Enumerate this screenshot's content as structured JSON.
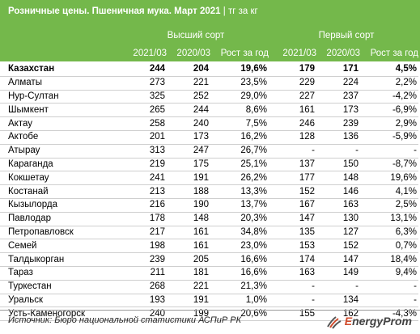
{
  "title": {
    "main": "Розничные цены. Пшеничная мука. Март 2021",
    "separator": "|",
    "unit": "тг за кг"
  },
  "groups": {
    "premium": "Высший сорт",
    "first": "Первый сорт"
  },
  "columns": {
    "c1": "2021/03",
    "c2": "2020/03",
    "c3": "Рост за год",
    "c4": "2021/03",
    "c5": "2020/03",
    "c6": "Рост за год"
  },
  "rows": [
    {
      "name": "Казахстан",
      "v": [
        "244",
        "204",
        "19,6%",
        "179",
        "171",
        "4,5%"
      ]
    },
    {
      "name": "Алматы",
      "v": [
        "273",
        "221",
        "23,5%",
        "229",
        "224",
        "2,2%"
      ]
    },
    {
      "name": "Нур-Султан",
      "v": [
        "325",
        "252",
        "29,0%",
        "227",
        "237",
        "-4,2%"
      ]
    },
    {
      "name": "Шымкент",
      "v": [
        "265",
        "244",
        "8,6%",
        "161",
        "173",
        "-6,9%"
      ]
    },
    {
      "name": "Актау",
      "v": [
        "258",
        "240",
        "7,5%",
        "246",
        "239",
        "2,9%"
      ]
    },
    {
      "name": "Актобе",
      "v": [
        "201",
        "173",
        "16,2%",
        "128",
        "136",
        "-5,9%"
      ]
    },
    {
      "name": "Атырау",
      "v": [
        "313",
        "247",
        "26,7%",
        "-",
        "-",
        "-"
      ]
    },
    {
      "name": "Караганда",
      "v": [
        "219",
        "175",
        "25,1%",
        "137",
        "150",
        "-8,7%"
      ]
    },
    {
      "name": "Кокшетау",
      "v": [
        "241",
        "191",
        "26,2%",
        "177",
        "148",
        "19,6%"
      ]
    },
    {
      "name": "Костанай",
      "v": [
        "213",
        "188",
        "13,3%",
        "152",
        "146",
        "4,1%"
      ]
    },
    {
      "name": "Кызылорда",
      "v": [
        "216",
        "190",
        "13,7%",
        "167",
        "163",
        "2,5%"
      ]
    },
    {
      "name": "Павлодар",
      "v": [
        "178",
        "148",
        "20,3%",
        "147",
        "130",
        "13,1%"
      ]
    },
    {
      "name": "Петропавловск",
      "v": [
        "217",
        "161",
        "34,8%",
        "135",
        "127",
        "6,3%"
      ]
    },
    {
      "name": "Семей",
      "v": [
        "198",
        "161",
        "23,0%",
        "153",
        "152",
        "0,7%"
      ]
    },
    {
      "name": "Талдыкорган",
      "v": [
        "239",
        "205",
        "16,6%",
        "174",
        "147",
        "18,4%"
      ]
    },
    {
      "name": "Тараз",
      "v": [
        "211",
        "181",
        "16,6%",
        "163",
        "149",
        "9,4%"
      ]
    },
    {
      "name": "Туркестан",
      "v": [
        "268",
        "221",
        "21,3%",
        "-",
        "-",
        "-"
      ]
    },
    {
      "name": "Уральск",
      "v": [
        "193",
        "191",
        "1,0%",
        "-",
        "134",
        "-"
      ]
    },
    {
      "name": "Усть-Каменогорск",
      "v": [
        "240",
        "199",
        "20,6%",
        "155",
        "162",
        "-4,3%"
      ]
    }
  ],
  "footer": {
    "source": "Источник: Бюро национальной статистики АСПиР РК",
    "logo_text_e": "E",
    "logo_text_rest": "nergyProm",
    "logo_icon": "energyprom-logo-icon"
  },
  "colors": {
    "header_green": "#74b84b",
    "logo_red": "#d04a2a"
  }
}
